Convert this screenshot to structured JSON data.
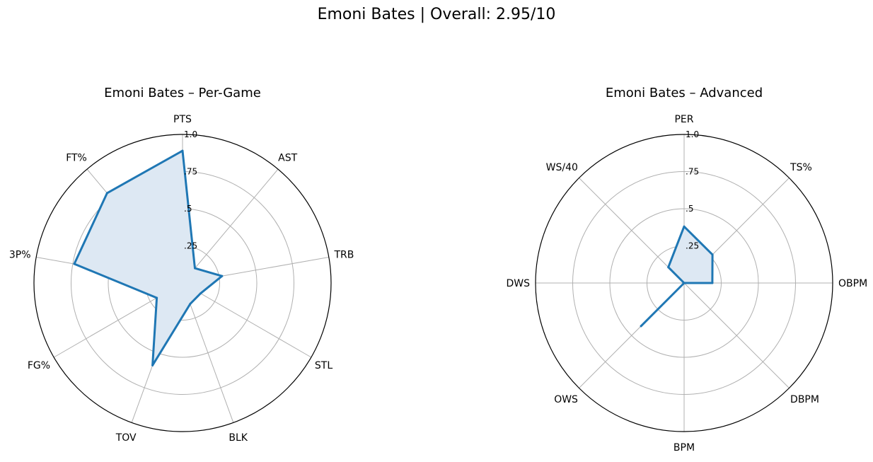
{
  "title": "Emoni Bates | Overall: 2.95/10",
  "colors": {
    "line": "#1f77b4",
    "fill": "#dde8f3",
    "grid": "#b0b0b0",
    "frame": "#000000"
  },
  "chart_data": [
    {
      "type": "radar",
      "title": "Emoni Bates – Per-Game",
      "axes": [
        "PTS",
        "AST",
        "TRB",
        "STL",
        "BLK",
        "TOV",
        "FG%",
        "3P%",
        "FT%"
      ],
      "values": [
        0.89,
        0.13,
        0.27,
        0.14,
        0.15,
        0.59,
        0.2,
        0.74,
        0.79
      ],
      "rlim": [
        0,
        1.0
      ],
      "rticks": [
        0.25,
        0.5,
        0.75,
        1.0
      ],
      "rtick_labels": [
        ".25",
        ".5",
        ".75",
        "1.0"
      ],
      "filled": true
    },
    {
      "type": "radar",
      "title": "Emoni Bates – Advanced",
      "axes": [
        "PER",
        "TS%",
        "OBPM",
        "DBPM",
        "BPM",
        "OWS",
        "DWS",
        "WS/40"
      ],
      "values": [
        0.38,
        0.27,
        0.19,
        0.0,
        0.0,
        0.41,
        0.0,
        0.15
      ],
      "rlim": [
        0,
        1.0
      ],
      "rticks": [
        0.25,
        0.5,
        0.75,
        1.0
      ],
      "rtick_labels": [
        ".25",
        ".5",
        ".75",
        "1.0"
      ],
      "filled": true
    }
  ]
}
